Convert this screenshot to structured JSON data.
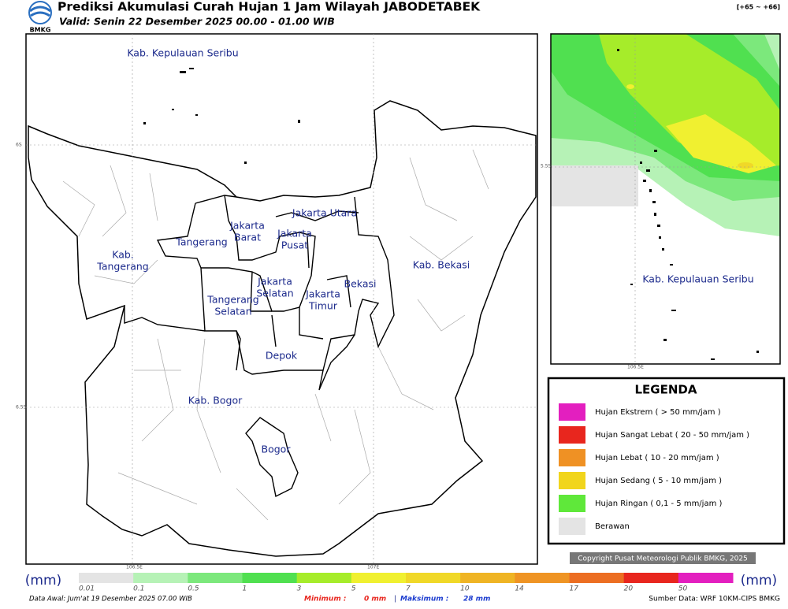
{
  "header": {
    "logo": "BMKG",
    "title": "Prediksi Akumulasi Curah Hujan 1 Jam Wilayah JABODETABEK",
    "valid": "Valid: Senin 22 Desember 2025 00.00 - 01.00 WIB",
    "tag": "[+65 ~ +66]"
  },
  "map": {
    "axis_labels": [
      "6S",
      "6.5S",
      "106.5E",
      "107E"
    ],
    "regions": [
      {
        "lines": [
          "Kab. Kepulauan Seribu"
        ]
      },
      {
        "lines": [
          "Jakarta Utara"
        ]
      },
      {
        "lines": [
          "Jakarta",
          "Barat"
        ]
      },
      {
        "lines": [
          "Jakarta",
          "Pusat"
        ]
      },
      {
        "lines": [
          "Tangerang"
        ]
      },
      {
        "lines": [
          "Kab.",
          "Tangerang"
        ]
      },
      {
        "lines": [
          "Kab. Bekasi"
        ]
      },
      {
        "lines": [
          "Jakarta",
          "Selatan"
        ]
      },
      {
        "lines": [
          "Bekasi"
        ]
      },
      {
        "lines": [
          "Jakarta",
          "Timur"
        ]
      },
      {
        "lines": [
          "Tangerang",
          "Selatan"
        ]
      },
      {
        "lines": [
          "Depok"
        ]
      },
      {
        "lines": [
          "Kab. Bogor"
        ]
      },
      {
        "lines": [
          "Bogor"
        ]
      }
    ]
  },
  "inset": {
    "label": "Kab. Kepulauan Seribu",
    "axis_labels": [
      "5.5S",
      "106.5E"
    ]
  },
  "legend": {
    "title": "LEGENDA",
    "items": [
      {
        "label": "Hujan Ekstrem ( > 50 mm/jam )",
        "color": "#e31fbf"
      },
      {
        "label": "Hujan Sangat Lebat ( 20 - 50 mm/jam )",
        "color": "#e8261e"
      },
      {
        "label": "Hujan Lebat ( 10 - 20 mm/jam )",
        "color": "#ef9124"
      },
      {
        "label": "Hujan Sedang ( 5 - 10 mm/jam )",
        "color": "#f1d51c"
      },
      {
        "label": "Hujan Ringan ( 0,1 - 5 mm/jam )",
        "color": "#5fe83a"
      },
      {
        "label": "Berawan",
        "color": "#e4e4e4"
      }
    ]
  },
  "copyright": "Copyright Pusat Meteorologi Publik BMKG, 2025",
  "colorbar": {
    "unit": "(mm)",
    "labels": [
      "0.01",
      "0.1",
      "0.5",
      "1",
      "3",
      "5",
      "7",
      "10",
      "14",
      "17",
      "20",
      "50"
    ],
    "colors": [
      "#e4e4e4",
      "#b6f2b6",
      "#7ce87c",
      "#50e050",
      "#a6ec2a",
      "#f0f030",
      "#f0d828",
      "#efb424",
      "#ef9424",
      "#ec6e22",
      "#e8261e",
      "#e31fbf"
    ]
  },
  "footer": {
    "data_awal": "Data Awal: Jum'at 19 Desember 2025 07.00 WIB",
    "min_label": "Minimum :",
    "min_value": "0 mm",
    "sep": "|",
    "max_label": "Maksimum :",
    "max_value": "28 mm",
    "source": "Sumber Data: WRF 10KM-CIPS BMKG"
  }
}
